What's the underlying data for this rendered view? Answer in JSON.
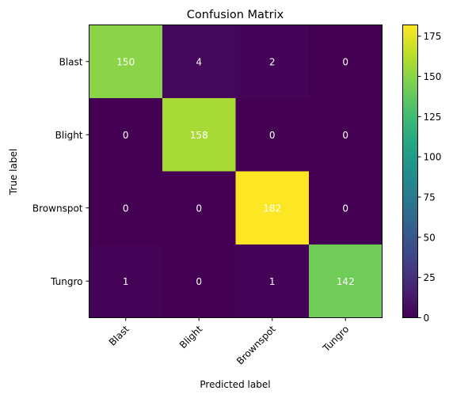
{
  "chart_data": {
    "type": "heatmap",
    "title": "Confusion Matrix",
    "xlabel": "Predicted label",
    "ylabel": "True label",
    "x_categories": [
      "Blast",
      "Blight",
      "Brownspot",
      "Tungro"
    ],
    "y_categories": [
      "Blast",
      "Blight",
      "Brownspot",
      "Tungro"
    ],
    "matrix": [
      [
        150,
        4,
        2,
        0
      ],
      [
        0,
        158,
        0,
        0
      ],
      [
        0,
        0,
        182,
        0
      ],
      [
        1,
        0,
        1,
        142
      ]
    ],
    "colorbar": {
      "colormap": "viridis",
      "range": [
        0,
        182
      ],
      "ticks": [
        0,
        25,
        50,
        75,
        100,
        125,
        150,
        175
      ]
    },
    "colors": {
      "text_on_dark": "#ffffff",
      "text_on_light": "#000000"
    }
  }
}
